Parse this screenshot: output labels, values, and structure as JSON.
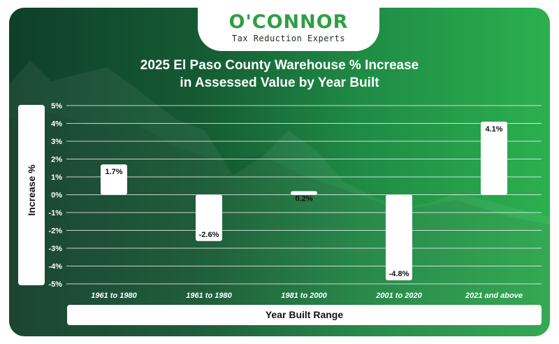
{
  "logo": {
    "name": "O'CONNOR",
    "tagline": "Tax Reduction Experts"
  },
  "colors": {
    "bar": "#ffffff",
    "grid": "#ffffff",
    "logo_green": "#2f9e44",
    "bg_dark": "#0f3f2a",
    "bg_light": "#2cb04f"
  },
  "chart_data": {
    "type": "bar",
    "title": [
      "2025 El Paso County Warehouse % Increase",
      "in Assessed Value by Year Built"
    ],
    "xlabel": "Year Built Range",
    "ylabel": "Increase %",
    "categories": [
      "1961 to 1980",
      "1961 to 1980",
      "1981 to 2000",
      "2001 to 2020",
      "2021 and above"
    ],
    "values": [
      1.7,
      -2.6,
      0.2,
      -4.8,
      4.1
    ],
    "data_labels": [
      "1.7%",
      "-2.6%",
      "0.2%",
      "-4.8%",
      "4.1%"
    ],
    "ylim": [
      -5,
      5
    ],
    "yticks": [
      5,
      4,
      3,
      2,
      1,
      0,
      -1,
      -2,
      -3,
      -4,
      -5
    ],
    "ytick_labels": [
      "5%",
      "4%",
      "3%",
      "2%",
      "1%",
      "0%",
      "-1%",
      "-2%",
      "-3%",
      "-4%",
      "-5%"
    ],
    "grid": true,
    "legend": "none"
  }
}
